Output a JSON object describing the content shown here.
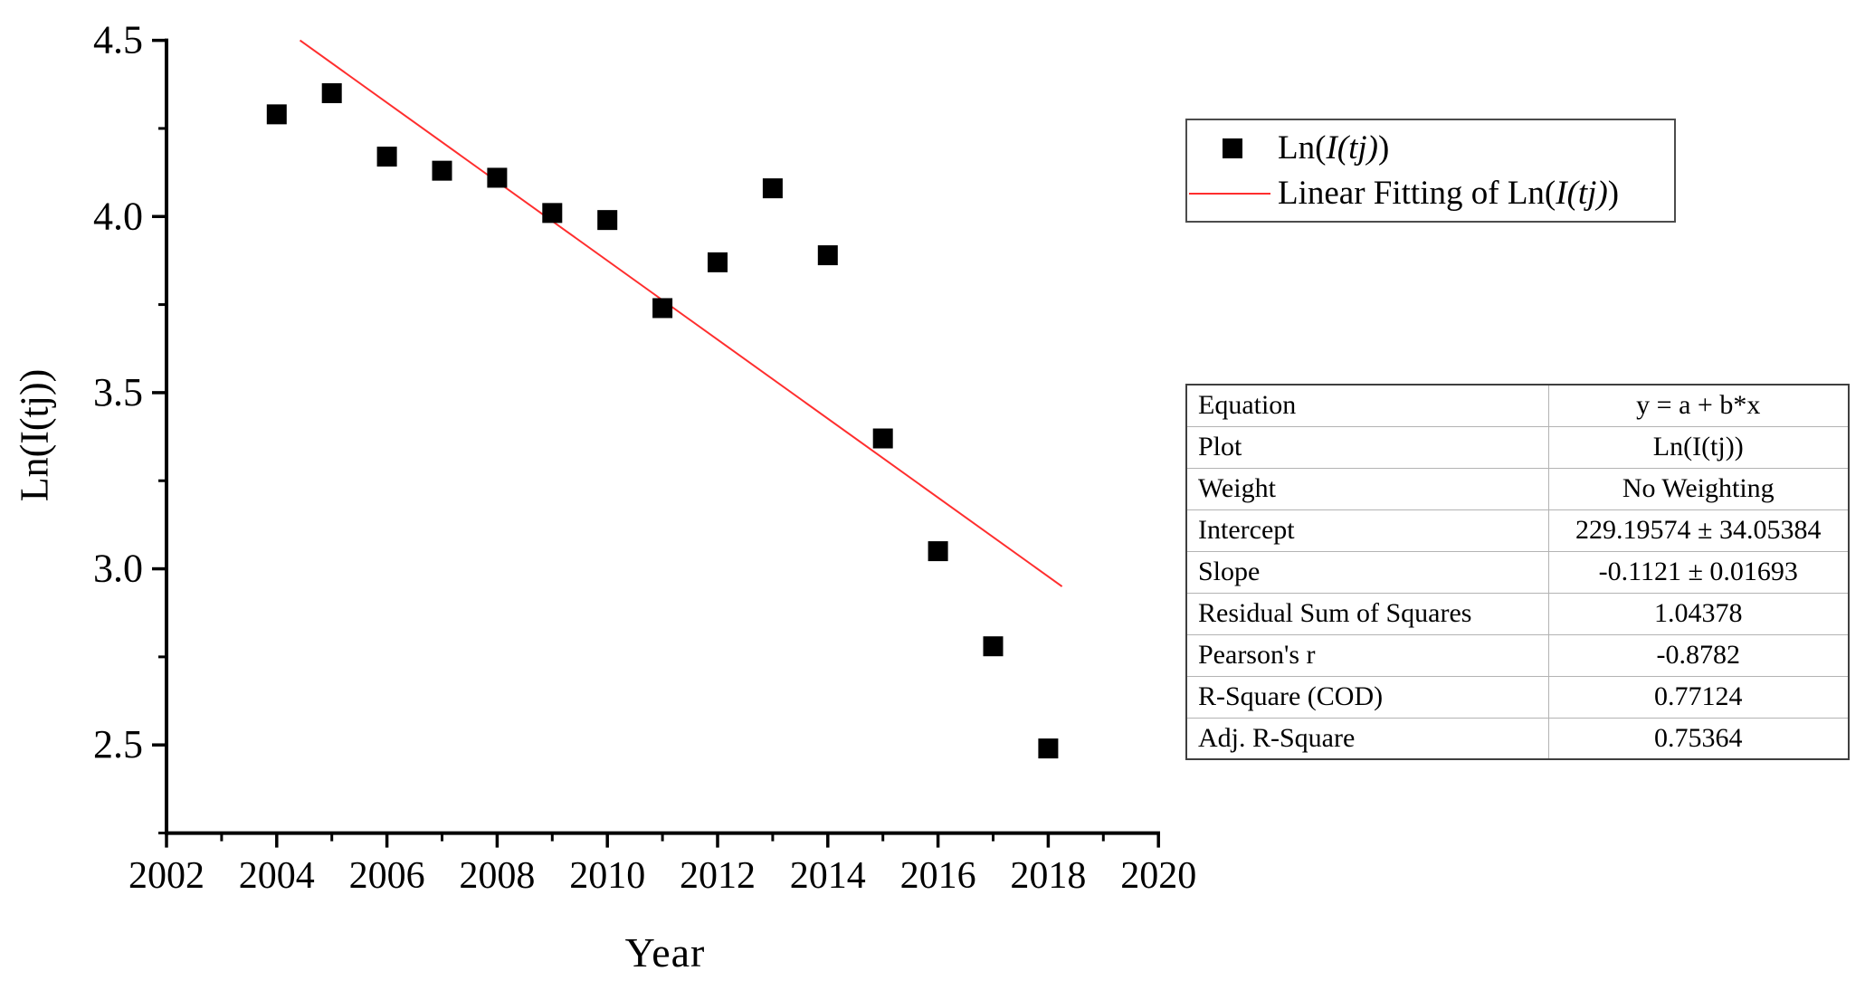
{
  "figure": {
    "background": "#ffffff"
  },
  "x_axis": {
    "label": "Year",
    "tick_labels": [
      "2002",
      "2004",
      "2006",
      "2008",
      "2010",
      "2012",
      "2014",
      "2016",
      "2018",
      "2020"
    ]
  },
  "y_axis": {
    "label": "Ln(I(tj))",
    "tick_labels": [
      "4.5",
      "4.0",
      "3.5",
      "3.0",
      "2.5"
    ]
  },
  "legend": {
    "items": [
      {
        "marker": "black-square",
        "label_prefix": "Ln(",
        "label_italic": "I(tj)",
        "label_suffix": ")"
      },
      {
        "marker": "red-line",
        "label_prefix": "Linear Fitting of Ln(",
        "label_italic": "I(tj)",
        "label_suffix": ")"
      }
    ]
  },
  "stats_table": {
    "rows": [
      [
        "Equation",
        "y = a + b*x"
      ],
      [
        "Plot",
        "Ln(I(tj))"
      ],
      [
        "Weight",
        "No Weighting"
      ],
      [
        "Intercept",
        "229.19574 ± 34.05384"
      ],
      [
        "Slope",
        "-0.1121 ± 0.01693"
      ],
      [
        "Residual Sum of Squares",
        "1.04378"
      ],
      [
        "Pearson's r",
        "-0.8782"
      ],
      [
        "R-Square (COD)",
        "0.77124"
      ],
      [
        "Adj. R-Square",
        "0.75364"
      ]
    ]
  },
  "chart_data": {
    "type": "scatter",
    "title": "",
    "xlabel": "Year",
    "ylabel": "Ln(I(tj))",
    "series": [
      {
        "name": "Ln(I(tj))",
        "marker": "filled-square",
        "x": [
          2004,
          2005,
          2006,
          2007,
          2008,
          2009,
          2010,
          2011,
          2012,
          2013,
          2014,
          2015,
          2016,
          2017,
          2018
        ],
        "y": [
          4.29,
          4.35,
          4.17,
          4.13,
          4.11,
          4.01,
          3.99,
          3.74,
          3.87,
          4.08,
          3.89,
          3.37,
          3.05,
          2.78,
          2.49
        ]
      }
    ],
    "fit": {
      "name": "Linear Fitting of Ln(I(tj))",
      "equation": "y = a + b*x",
      "intercept": 229.19574,
      "slope": -0.1121,
      "x_draw_end": 2018.25,
      "y_clip_top": 4.5
    },
    "xlim": [
      2002,
      2020
    ],
    "ylim": [
      2.25,
      4.5
    ],
    "x_major_ticks": [
      2002,
      2004,
      2006,
      2008,
      2010,
      2012,
      2014,
      2016,
      2018,
      2020
    ],
    "x_minor_ticks": [
      2003,
      2005,
      2007,
      2009,
      2011,
      2013,
      2015,
      2017,
      2019
    ],
    "y_major_ticks": [
      4.5,
      4.0,
      3.5,
      3.0,
      2.5
    ],
    "y_minor_ticks": [
      4.25,
      3.75,
      3.25,
      2.75,
      2.25
    ],
    "grid": false,
    "legend_position": "upper-right-outside",
    "colors": {
      "marker": "#000000",
      "fit_line": "#ff2e2e",
      "axis": "#000000"
    }
  }
}
